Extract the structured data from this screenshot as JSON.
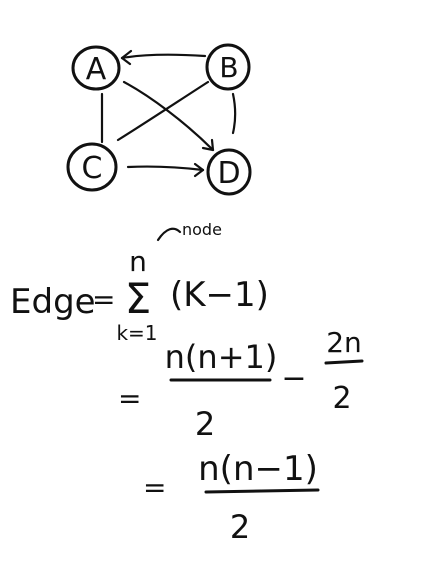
{
  "graph": {
    "nodes": [
      {
        "id": "A",
        "label": "A"
      },
      {
        "id": "B",
        "label": "B"
      },
      {
        "id": "C",
        "label": "C"
      },
      {
        "id": "D",
        "label": "D"
      }
    ],
    "edges": [
      {
        "from": "B",
        "to": "A",
        "directed": true
      },
      {
        "from": "A",
        "to": "C",
        "directed": false
      },
      {
        "from": "A",
        "to": "D",
        "directed": true
      },
      {
        "from": "B",
        "to": "D",
        "directed": false
      },
      {
        "from": "C",
        "to": "B",
        "directed": false
      },
      {
        "from": "C",
        "to": "D",
        "directed": true
      }
    ]
  },
  "math": {
    "lhs": "Edge",
    "equals": "=",
    "sum_upper": "n",
    "sum_upper_note": "node",
    "sum_symbol": "Σ",
    "sum_lower": "k=1",
    "sum_term": "(K−1)",
    "step2_num": "n(n+1)",
    "step2_den": "2",
    "step2_minus": "−",
    "step2_sub_num": "2n",
    "step2_sub_den": "2",
    "step3_num": "n(n−1)",
    "step3_den": "2"
  }
}
